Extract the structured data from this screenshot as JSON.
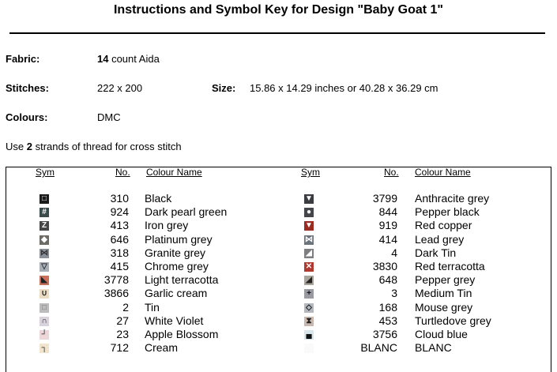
{
  "title": "Instructions and Symbol Key for Design \"Baby Goat 1\"",
  "fabric": {
    "label": "Fabric:",
    "count": "14",
    "value": " count Aida"
  },
  "stitches": {
    "label": "Stitches:",
    "value": "222 x 200"
  },
  "size": {
    "label": "Size:",
    "value": "15.86 x 14.29 inches or 40.28 x 36.29 cm"
  },
  "colours": {
    "label": "Colours:",
    "value": "DMC"
  },
  "strands": {
    "pre": "Use ",
    "count": "2",
    "post": " strands of thread for cross stitch"
  },
  "headers": {
    "sym": "Sym",
    "no": "No.",
    "name": "Colour Name"
  },
  "left": [
    {
      "sym": "□",
      "bg": "#1a1a1a",
      "fg": "#fff",
      "no": "310",
      "name": "Black"
    },
    {
      "sym": "#",
      "bg": "#3b4a4a",
      "fg": "#fff",
      "no": "924",
      "name": "Dark pearl green"
    },
    {
      "sym": "Z",
      "bg": "#464646",
      "fg": "#fff",
      "no": "413",
      "name": "Iron grey"
    },
    {
      "sym": "◆",
      "bg": "#6e6a66",
      "fg": "#fff",
      "no": "646",
      "name": "Platinum grey"
    },
    {
      "sym": "⋈",
      "bg": "#8a8f98",
      "fg": "#333",
      "no": "318",
      "name": "Granite grey"
    },
    {
      "sym": "▽",
      "bg": "#a9adb8",
      "fg": "#333",
      "no": "415",
      "name": "Chrome grey"
    },
    {
      "sym": "◣",
      "bg": "#c8705c",
      "fg": "#222",
      "no": "3778",
      "name": "Light terracotta"
    },
    {
      "sym": "∪",
      "bg": "#eadcc2",
      "fg": "#222",
      "no": "3866",
      "name": "Garlic cream"
    },
    {
      "sym": "□",
      "bg": "#bcbcbc",
      "fg": "#777",
      "no": "2",
      "name": "Tin"
    },
    {
      "sym": "∩",
      "bg": "#d8d2dc",
      "fg": "#222",
      "no": "27",
      "name": "White Violet"
    },
    {
      "sym": "┘",
      "bg": "#ecd6da",
      "fg": "#222",
      "no": "23",
      "name": "Apple Blossom"
    },
    {
      "sym": "┐",
      "bg": "#f0e4cc",
      "fg": "#222",
      "no": "712",
      "name": "Cream"
    }
  ],
  "right": [
    {
      "sym": "▼",
      "bg": "#3a3c40",
      "fg": "#fff",
      "no": "3799",
      "name": "Anthracite grey"
    },
    {
      "sym": "●",
      "bg": "#44464a",
      "fg": "#fff",
      "no": "844",
      "name": "Pepper black"
    },
    {
      "sym": "▼",
      "bg": "#9a2a22",
      "fg": "#fff",
      "no": "919",
      "name": "Red copper"
    },
    {
      "sym": "⋈",
      "bg": "#6e747e",
      "fg": "#fff",
      "no": "414",
      "name": "Lead grey"
    },
    {
      "sym": "◢",
      "bg": "#7e7e80",
      "fg": "#fff",
      "no": "4",
      "name": "Dark Tin"
    },
    {
      "sym": "✕",
      "bg": "#b03a30",
      "fg": "#fff",
      "no": "3830",
      "name": "Red terracotta"
    },
    {
      "sym": "◢",
      "bg": "#a8a49a",
      "fg": "#222",
      "no": "648",
      "name": "Pepper grey"
    },
    {
      "sym": "+",
      "bg": "#9a9aa2",
      "fg": "#111",
      "no": "3",
      "name": "Medium Tin"
    },
    {
      "sym": "◇",
      "bg": "#b4b8be",
      "fg": "#111",
      "no": "168",
      "name": "Mouse grey"
    },
    {
      "sym": "⧗",
      "bg": "#c8b8b0",
      "fg": "#222",
      "no": "453",
      "name": "Turtledove grey"
    },
    {
      "sym": "▄",
      "bg": "#d8e6ee",
      "fg": "#111",
      "no": "3756",
      "name": "Cloud blue"
    },
    {
      "sym": "",
      "bg": "#fafafa",
      "fg": "#fff",
      "no": "BLANC",
      "name": "BLANC"
    }
  ]
}
